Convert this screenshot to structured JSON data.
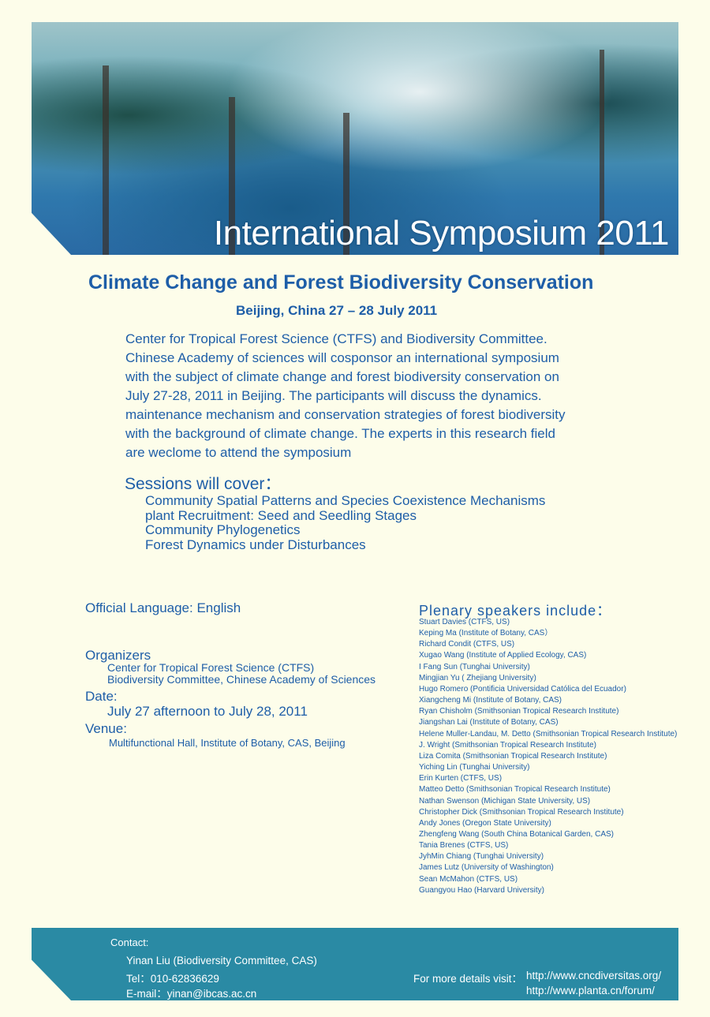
{
  "banner": {
    "title": "International Symposium 2011"
  },
  "subtitle": "Climate Change and Forest Biodiversity Conservation",
  "place_date": "Beijing, China  27 – 28 July 2011",
  "intro": [
    "Center for Tropical Forest Science  (CTFS)  and  Biodiversity Committee.",
    "Chinese Academy of sciences will cosponsor an international symposium",
    "with the subject of climate change and forest biodiversity conservation on",
    "July 27-28,  2011 in Beijing. The participants will discuss the dynamics.",
    "maintenance mechanism and conservation strategies of forest biodiversity",
    "with the background of climate change. The experts in this research field",
    "are weclome to attend the symposium"
  ],
  "sessions": {
    "heading": "Sessions will cover：",
    "items": [
      "Community Spatial Patterns and Species Coexistence Mechanisms",
      "plant Recruitment: Seed and Seedling Stages",
      "Community Phylogenetics",
      "Forest Dynamics under Disturbances"
    ]
  },
  "language": {
    "label": "Official Language",
    "value": ": English"
  },
  "organizers": {
    "label": "Organizers",
    "items": [
      "Center for Tropical Forest Science (CTFS)",
      "Biodiversity Committee, Chinese Academy of Sciences"
    ]
  },
  "date": {
    "label": "Date:",
    "value": "July 27 afternoon to July 28, 2011"
  },
  "venue": {
    "label": "Venue:",
    "value": "Multifunctional Hall, Institute of Botany, CAS, Beijing"
  },
  "plenary": {
    "heading": "Plenary speakers include：",
    "speakers": [
      "Stuart Davies (CTFS, US)",
      "Keping Ma (Institute of Botany, CAS）",
      "Richard Condit (CTFS, US)",
      "Xugao Wang (Institute of Applied Ecology, CAS)",
      "I Fang Sun (Tunghai University)",
      "Mingjian Yu ( Zhejiang University)",
      "Hugo Romero (Pontificia Universidad Católica del Ecuador)",
      "Xiangcheng Mi (Institute of Botany, CAS)",
      "Ryan Chisholm (Smithsonian Tropical Research Institute)",
      "Jiangshan Lai (Institute of Botany, CAS)",
      "Helene Muller-Landau, M. Detto (Smithsonian Tropical Research Institute)",
      "J. Wright (Smithsonian Tropical Research Institute)",
      "Liza Comita (Smithsonian Tropical Research Institute)",
      "Yiching Lin (Tunghai University)",
      "Erin Kurten (CTFS, US)",
      "Matteo Detto (Smithsonian Tropical Research Institute)",
      "Nathan Swenson (Michigan State University, US)",
      "Christopher Dick (Smithsonian Tropical Research Institute)",
      "Andy Jones (Oregon State University)",
      "Zhengfeng Wang (South China Botanical Garden, CAS)",
      "Tania Brenes (CTFS, US)",
      "JyhMin Chiang (Tunghai University)",
      "James Lutz (University of Washington)",
      "Sean McMahon (CTFS, US)",
      "Guangyou Hao (Harvard University)"
    ]
  },
  "contact": {
    "label": "Contact:",
    "name": "Yinan Liu (Biodiversity Committee, CAS)",
    "tel": "Tel：010-62836629",
    "email": "E-mail：yinan@ibcas.ac.cn",
    "details_label": "For more details visit：",
    "url1": "http://www.cncdiversitas.org/",
    "url2": "http://www.planta.cn/forum/"
  },
  "colors": {
    "text": "#1e5ea8",
    "footer": "#2a8aa4",
    "background": "#fdfdea"
  }
}
